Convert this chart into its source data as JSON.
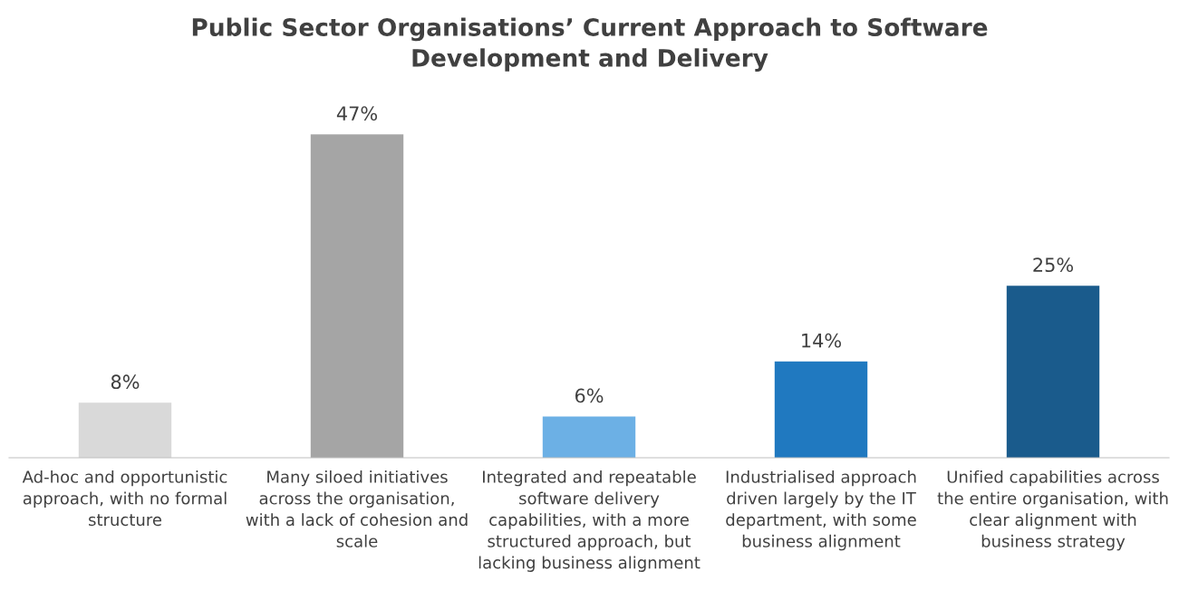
{
  "chart_data": {
    "type": "bar",
    "title": "Public Sector Organisations’ Current Approach to Software\nDevelopment and Delivery",
    "categories": [
      "Ad-hoc and opportunistic\napproach, with no formal\nstructure",
      "Many siloed initiatives\nacross the organisation,\nwith a lack of cohesion and\nscale",
      "Integrated and repeatable\nsoftware delivery\ncapabilities, with a more\nstructured approach, but\nlacking business alignment",
      "Industrialised approach\ndriven largely by the IT\ndepartment, with some\nbusiness alignment",
      "Unified capabilities across\nthe entire organisation, with\nclear alignment with\nbusiness strategy"
    ],
    "values": [
      8,
      47,
      6,
      14,
      25
    ],
    "value_labels": [
      "8%",
      "47%",
      "6%",
      "14%",
      "25%"
    ],
    "colors": [
      "#d9d9d9",
      "#a5a5a5",
      "#6cb0e5",
      "#2079c0",
      "#1a5b8c"
    ],
    "grid": false,
    "legend": false
  }
}
